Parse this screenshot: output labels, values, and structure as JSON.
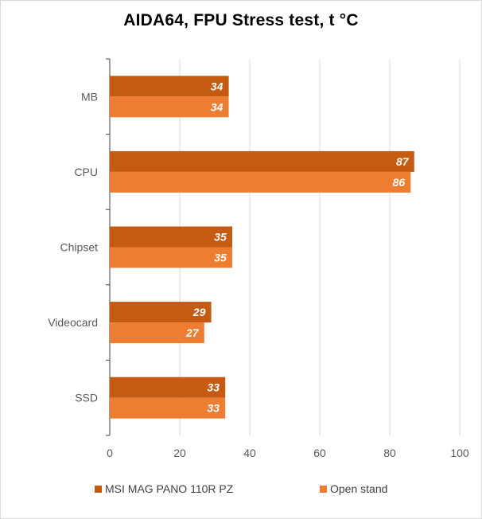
{
  "chart_data": {
    "type": "bar",
    "orientation": "horizontal",
    "title": "AIDA64, FPU Stress test, t °C",
    "categories": [
      "MB",
      "CPU",
      "Chipset",
      "Videocard",
      "SSD"
    ],
    "series": [
      {
        "name": "MSI MAG PANO 110R PZ",
        "color": "#c55a11",
        "values": [
          34,
          87,
          35,
          29,
          33
        ]
      },
      {
        "name": "Open stand",
        "color": "#ed7d31",
        "values": [
          34,
          86,
          35,
          27,
          33
        ]
      }
    ],
    "xlim": [
      0,
      100
    ],
    "xticks": [
      "0",
      "20",
      "40",
      "60",
      "80",
      "100"
    ],
    "grid": true,
    "legend_position": "bottom"
  }
}
